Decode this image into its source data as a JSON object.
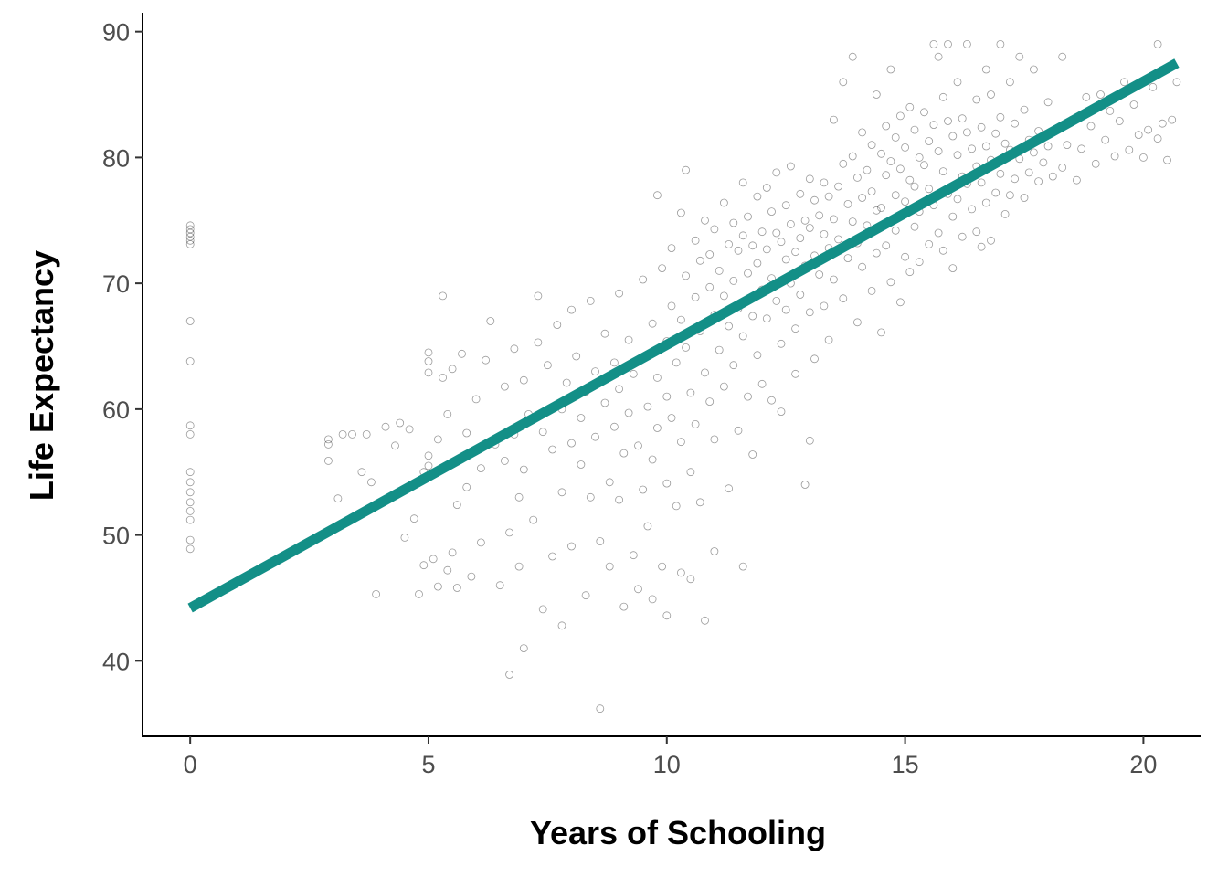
{
  "chart_data": {
    "type": "scatter",
    "xlabel": "Years of Schooling",
    "ylabel": "Life Expectancy",
    "xlim": [
      -1,
      21.2
    ],
    "ylim": [
      34,
      91.5
    ],
    "x_ticks": [
      0,
      5,
      10,
      15,
      20
    ],
    "y_ticks": [
      40,
      50,
      60,
      70,
      80,
      90
    ],
    "grid": false,
    "point_style": "hollow circles",
    "point_color": "#000000",
    "trend_line": {
      "type": "linear",
      "color": "#138f87",
      "x": [
        0,
        20.7
      ],
      "y": [
        44.2,
        87.5
      ]
    },
    "points": [
      [
        0,
        74.6
      ],
      [
        0,
        74.3
      ],
      [
        0,
        74.0
      ],
      [
        0,
        73.7
      ],
      [
        0,
        73.4
      ],
      [
        0,
        73.1
      ],
      [
        0,
        67.0
      ],
      [
        0,
        63.8
      ],
      [
        0,
        58.7
      ],
      [
        0,
        58.0
      ],
      [
        0,
        55.0
      ],
      [
        0,
        54.2
      ],
      [
        0,
        53.4
      ],
      [
        0,
        52.6
      ],
      [
        0,
        51.9
      ],
      [
        0,
        51.2
      ],
      [
        0,
        49.6
      ],
      [
        0,
        48.9
      ],
      [
        2.9,
        57.6
      ],
      [
        2.9,
        57.2
      ],
      [
        2.9,
        55.9
      ],
      [
        3.1,
        52.9
      ],
      [
        3.2,
        58.0
      ],
      [
        3.4,
        58.0
      ],
      [
        3.6,
        55.0
      ],
      [
        3.7,
        58.0
      ],
      [
        3.8,
        54.2
      ],
      [
        3.9,
        45.3
      ],
      [
        4.1,
        58.6
      ],
      [
        4.3,
        57.1
      ],
      [
        4.4,
        58.9
      ],
      [
        4.5,
        49.8
      ],
      [
        4.6,
        58.4
      ],
      [
        4.7,
        51.3
      ],
      [
        4.8,
        45.3
      ],
      [
        4.9,
        55.0
      ],
      [
        4.9,
        47.6
      ],
      [
        5.0,
        64.5
      ],
      [
        5.0,
        63.8
      ],
      [
        5.0,
        62.9
      ],
      [
        5.0,
        56.3
      ],
      [
        5.0,
        55.5
      ],
      [
        5.1,
        48.1
      ],
      [
        5.2,
        57.6
      ],
      [
        5.2,
        45.9
      ],
      [
        5.3,
        69.0
      ],
      [
        5.3,
        62.5
      ],
      [
        5.4,
        59.6
      ],
      [
        5.4,
        47.2
      ],
      [
        5.5,
        63.2
      ],
      [
        5.5,
        48.6
      ],
      [
        5.6,
        52.4
      ],
      [
        5.6,
        45.8
      ],
      [
        5.7,
        64.4
      ],
      [
        5.8,
        58.1
      ],
      [
        5.8,
        53.8
      ],
      [
        5.9,
        46.7
      ],
      [
        6.0,
        60.8
      ],
      [
        6.1,
        55.3
      ],
      [
        6.1,
        49.4
      ],
      [
        6.2,
        63.9
      ],
      [
        6.3,
        67.0
      ],
      [
        6.4,
        57.2
      ],
      [
        6.5,
        46.0
      ],
      [
        6.6,
        61.8
      ],
      [
        6.6,
        55.9
      ],
      [
        6.7,
        50.2
      ],
      [
        6.8,
        64.8
      ],
      [
        6.8,
        58.0
      ],
      [
        6.9,
        53.0
      ],
      [
        6.9,
        47.5
      ],
      [
        6.7,
        38.9
      ],
      [
        7.0,
        62.3
      ],
      [
        7.0,
        55.2
      ],
      [
        7.0,
        41.0
      ],
      [
        7.1,
        59.6
      ],
      [
        7.2,
        51.2
      ],
      [
        7.3,
        69.0
      ],
      [
        7.3,
        65.3
      ],
      [
        7.4,
        58.2
      ],
      [
        7.4,
        44.1
      ],
      [
        7.5,
        63.5
      ],
      [
        7.6,
        56.8
      ],
      [
        7.6,
        48.3
      ],
      [
        7.7,
        66.7
      ],
      [
        7.8,
        60.0
      ],
      [
        7.8,
        53.4
      ],
      [
        7.8,
        42.8
      ],
      [
        7.9,
        62.1
      ],
      [
        8.0,
        67.9
      ],
      [
        8.0,
        57.3
      ],
      [
        8.0,
        49.1
      ],
      [
        8.1,
        64.2
      ],
      [
        8.2,
        59.3
      ],
      [
        8.2,
        55.6
      ],
      [
        8.3,
        45.2
      ],
      [
        8.3,
        61.4
      ],
      [
        8.4,
        68.6
      ],
      [
        8.4,
        53.0
      ],
      [
        8.5,
        63.0
      ],
      [
        8.5,
        57.8
      ],
      [
        8.6,
        49.5
      ],
      [
        8.6,
        36.2
      ],
      [
        8.7,
        66.0
      ],
      [
        8.7,
        60.5
      ],
      [
        8.8,
        54.2
      ],
      [
        8.8,
        47.5
      ],
      [
        8.9,
        63.7
      ],
      [
        8.9,
        58.6
      ],
      [
        9.0,
        69.2
      ],
      [
        9.0,
        61.6
      ],
      [
        9.0,
        52.8
      ],
      [
        9.1,
        56.5
      ],
      [
        9.1,
        44.3
      ],
      [
        9.2,
        65.5
      ],
      [
        9.2,
        59.7
      ],
      [
        9.3,
        48.4
      ],
      [
        9.3,
        62.8
      ],
      [
        9.4,
        57.1
      ],
      [
        9.4,
        45.7
      ],
      [
        9.5,
        70.3
      ],
      [
        9.5,
        64.1
      ],
      [
        9.5,
        53.6
      ],
      [
        9.6,
        60.2
      ],
      [
        9.6,
        50.7
      ],
      [
        9.7,
        66.8
      ],
      [
        9.7,
        56.0
      ],
      [
        9.7,
        44.9
      ],
      [
        9.8,
        77.0
      ],
      [
        9.8,
        62.5
      ],
      [
        9.8,
        58.5
      ],
      [
        9.9,
        47.5
      ],
      [
        9.9,
        71.2
      ],
      [
        10.0,
        65.4
      ],
      [
        10.0,
        61.0
      ],
      [
        10.0,
        54.1
      ],
      [
        10.0,
        43.6
      ],
      [
        10.1,
        72.8
      ],
      [
        10.1,
        68.2
      ],
      [
        10.1,
        59.3
      ],
      [
        10.2,
        63.7
      ],
      [
        10.2,
        52.3
      ],
      [
        10.3,
        75.6
      ],
      [
        10.3,
        67.1
      ],
      [
        10.3,
        57.4
      ],
      [
        10.3,
        47.0
      ],
      [
        10.4,
        79.0
      ],
      [
        10.4,
        70.6
      ],
      [
        10.4,
        64.9
      ],
      [
        10.5,
        61.3
      ],
      [
        10.5,
        55.0
      ],
      [
        10.5,
        46.5
      ],
      [
        10.6,
        73.4
      ],
      [
        10.6,
        68.9
      ],
      [
        10.6,
        58.8
      ],
      [
        10.7,
        71.8
      ],
      [
        10.7,
        66.2
      ],
      [
        10.7,
        52.6
      ],
      [
        10.8,
        75.0
      ],
      [
        10.8,
        62.9
      ],
      [
        10.8,
        43.2
      ],
      [
        10.9,
        72.3
      ],
      [
        10.9,
        69.7
      ],
      [
        10.9,
        60.6
      ],
      [
        11.0,
        74.3
      ],
      [
        11.0,
        67.5
      ],
      [
        11.0,
        57.6
      ],
      [
        11.0,
        48.7
      ],
      [
        11.1,
        71.0
      ],
      [
        11.1,
        64.7
      ],
      [
        11.2,
        76.4
      ],
      [
        11.2,
        69.0
      ],
      [
        11.2,
        61.8
      ],
      [
        11.3,
        73.1
      ],
      [
        11.3,
        66.6
      ],
      [
        11.3,
        53.7
      ],
      [
        11.4,
        74.8
      ],
      [
        11.4,
        70.2
      ],
      [
        11.4,
        63.5
      ],
      [
        11.5,
        72.6
      ],
      [
        11.5,
        68.0
      ],
      [
        11.5,
        58.3
      ],
      [
        11.6,
        78.0
      ],
      [
        11.6,
        73.8
      ],
      [
        11.6,
        65.8
      ],
      [
        11.6,
        47.5
      ],
      [
        11.7,
        75.3
      ],
      [
        11.7,
        70.8
      ],
      [
        11.7,
        61.0
      ],
      [
        11.8,
        73.0
      ],
      [
        11.8,
        67.4
      ],
      [
        11.8,
        56.4
      ],
      [
        11.9,
        76.9
      ],
      [
        11.9,
        71.6
      ],
      [
        11.9,
        64.3
      ],
      [
        12.0,
        74.1
      ],
      [
        12.0,
        69.5
      ],
      [
        12.0,
        62.0
      ],
      [
        12.1,
        77.6
      ],
      [
        12.1,
        72.7
      ],
      [
        12.1,
        67.2
      ],
      [
        12.2,
        75.7
      ],
      [
        12.2,
        70.4
      ],
      [
        12.2,
        60.7
      ],
      [
        12.3,
        78.8
      ],
      [
        12.3,
        74.0
      ],
      [
        12.3,
        68.6
      ],
      [
        12.4,
        73.3
      ],
      [
        12.4,
        65.2
      ],
      [
        12.4,
        59.8
      ],
      [
        12.5,
        76.2
      ],
      [
        12.5,
        71.9
      ],
      [
        12.5,
        67.9
      ],
      [
        12.6,
        79.3
      ],
      [
        12.6,
        74.7
      ],
      [
        12.6,
        70.0
      ],
      [
        12.7,
        72.5
      ],
      [
        12.7,
        66.4
      ],
      [
        12.7,
        62.8
      ],
      [
        12.8,
        77.1
      ],
      [
        12.8,
        73.6
      ],
      [
        12.8,
        69.1
      ],
      [
        12.9,
        75.0
      ],
      [
        12.9,
        71.4
      ],
      [
        12.9,
        54.0
      ],
      [
        13.0,
        78.3
      ],
      [
        13.0,
        74.4
      ],
      [
        13.0,
        67.7
      ],
      [
        13.0,
        57.5
      ],
      [
        13.1,
        76.6
      ],
      [
        13.1,
        72.2
      ],
      [
        13.1,
        64.0
      ],
      [
        13.2,
        75.4
      ],
      [
        13.2,
        70.7
      ],
      [
        13.3,
        78.0
      ],
      [
        13.3,
        73.9
      ],
      [
        13.3,
        68.2
      ],
      [
        13.4,
        76.9
      ],
      [
        13.4,
        72.8
      ],
      [
        13.4,
        65.5
      ],
      [
        13.5,
        83.0
      ],
      [
        13.5,
        75.1
      ],
      [
        13.5,
        70.3
      ],
      [
        13.6,
        77.7
      ],
      [
        13.6,
        73.5
      ],
      [
        13.7,
        86.0
      ],
      [
        13.7,
        79.5
      ],
      [
        13.7,
        68.8
      ],
      [
        13.8,
        76.3
      ],
      [
        13.8,
        72.0
      ],
      [
        13.9,
        88.0
      ],
      [
        13.9,
        80.1
      ],
      [
        13.9,
        74.9
      ],
      [
        14.0,
        78.4
      ],
      [
        14.0,
        73.2
      ],
      [
        14.0,
        66.9
      ],
      [
        14.1,
        82.0
      ],
      [
        14.1,
        76.8
      ],
      [
        14.1,
        71.3
      ],
      [
        14.2,
        79.0
      ],
      [
        14.2,
        74.6
      ],
      [
        14.3,
        81.0
      ],
      [
        14.3,
        77.3
      ],
      [
        14.3,
        69.4
      ],
      [
        14.4,
        85.0
      ],
      [
        14.4,
        75.8
      ],
      [
        14.4,
        72.4
      ],
      [
        14.5,
        80.3
      ],
      [
        14.5,
        76.0
      ],
      [
        14.5,
        66.1
      ],
      [
        14.6,
        82.5
      ],
      [
        14.6,
        78.6
      ],
      [
        14.6,
        73.0
      ],
      [
        14.7,
        87.0
      ],
      [
        14.7,
        79.7
      ],
      [
        14.7,
        70.1
      ],
      [
        14.8,
        81.6
      ],
      [
        14.8,
        77.0
      ],
      [
        14.8,
        74.2
      ],
      [
        14.9,
        83.3
      ],
      [
        14.9,
        79.1
      ],
      [
        14.9,
        68.5
      ],
      [
        15.0,
        80.8
      ],
      [
        15.0,
        76.5
      ],
      [
        15.0,
        72.1
      ],
      [
        15.1,
        84.0
      ],
      [
        15.1,
        78.2
      ],
      [
        15.1,
        70.9
      ],
      [
        15.2,
        82.2
      ],
      [
        15.2,
        77.7
      ],
      [
        15.2,
        74.5
      ],
      [
        15.3,
        80.0
      ],
      [
        15.3,
        75.7
      ],
      [
        15.3,
        71.7
      ],
      [
        15.4,
        83.6
      ],
      [
        15.4,
        79.4
      ],
      [
        15.5,
        81.3
      ],
      [
        15.5,
        77.5
      ],
      [
        15.5,
        73.1
      ],
      [
        15.6,
        89.0
      ],
      [
        15.6,
        82.6
      ],
      [
        15.6,
        76.2
      ],
      [
        15.7,
        88.0
      ],
      [
        15.7,
        80.5
      ],
      [
        15.7,
        74.0
      ],
      [
        15.8,
        84.8
      ],
      [
        15.8,
        78.9
      ],
      [
        15.8,
        72.6
      ],
      [
        15.9,
        89.0
      ],
      [
        15.9,
        82.9
      ],
      [
        15.9,
        77.1
      ],
      [
        16.0,
        81.7
      ],
      [
        16.0,
        75.3
      ],
      [
        16.0,
        71.2
      ],
      [
        16.1,
        86.0
      ],
      [
        16.1,
        80.2
      ],
      [
        16.1,
        76.7
      ],
      [
        16.2,
        83.1
      ],
      [
        16.2,
        78.5
      ],
      [
        16.2,
        73.7
      ],
      [
        16.3,
        89.0
      ],
      [
        16.3,
        82.0
      ],
      [
        16.3,
        77.9
      ],
      [
        16.4,
        80.7
      ],
      [
        16.4,
        75.9
      ],
      [
        16.5,
        84.6
      ],
      [
        16.5,
        79.3
      ],
      [
        16.5,
        74.1
      ],
      [
        16.6,
        82.4
      ],
      [
        16.6,
        78.0
      ],
      [
        16.6,
        72.9
      ],
      [
        16.7,
        87.0
      ],
      [
        16.7,
        80.9
      ],
      [
        16.7,
        76.4
      ],
      [
        16.8,
        85.0
      ],
      [
        16.8,
        79.8
      ],
      [
        16.8,
        73.4
      ],
      [
        16.9,
        81.9
      ],
      [
        16.9,
        77.2
      ],
      [
        17.0,
        89.0
      ],
      [
        17.0,
        83.2
      ],
      [
        17.0,
        78.7
      ],
      [
        17.1,
        81.1
      ],
      [
        17.1,
        75.5
      ],
      [
        17.2,
        86.0
      ],
      [
        17.2,
        80.6
      ],
      [
        17.2,
        77.0
      ],
      [
        17.3,
        82.7
      ],
      [
        17.3,
        78.3
      ],
      [
        17.4,
        88.0
      ],
      [
        17.4,
        79.9
      ],
      [
        17.5,
        83.8
      ],
      [
        17.5,
        76.8
      ],
      [
        17.6,
        81.4
      ],
      [
        17.6,
        78.8
      ],
      [
        17.7,
        87.0
      ],
      [
        17.7,
        80.4
      ],
      [
        17.8,
        82.1
      ],
      [
        17.8,
        78.1
      ],
      [
        17.9,
        79.6
      ],
      [
        18.0,
        84.4
      ],
      [
        18.0,
        80.9
      ],
      [
        18.1,
        78.5
      ],
      [
        18.2,
        82.3
      ],
      [
        18.3,
        88.0
      ],
      [
        18.3,
        79.2
      ],
      [
        18.4,
        81.0
      ],
      [
        18.5,
        83.0
      ],
      [
        18.6,
        78.2
      ],
      [
        18.7,
        80.7
      ],
      [
        18.8,
        84.8
      ],
      [
        18.9,
        82.5
      ],
      [
        19.0,
        79.5
      ],
      [
        19.1,
        85.0
      ],
      [
        19.2,
        81.4
      ],
      [
        19.3,
        83.7
      ],
      [
        19.4,
        80.1
      ],
      [
        19.5,
        82.9
      ],
      [
        19.6,
        86.0
      ],
      [
        19.7,
        80.6
      ],
      [
        19.8,
        84.2
      ],
      [
        19.9,
        81.8
      ],
      [
        20.0,
        80.0
      ],
      [
        20.1,
        82.2
      ],
      [
        20.2,
        85.6
      ],
      [
        20.3,
        89.0
      ],
      [
        20.3,
        81.5
      ],
      [
        20.4,
        82.7
      ],
      [
        20.5,
        79.8
      ],
      [
        20.6,
        83.0
      ],
      [
        20.7,
        86.0
      ]
    ]
  }
}
